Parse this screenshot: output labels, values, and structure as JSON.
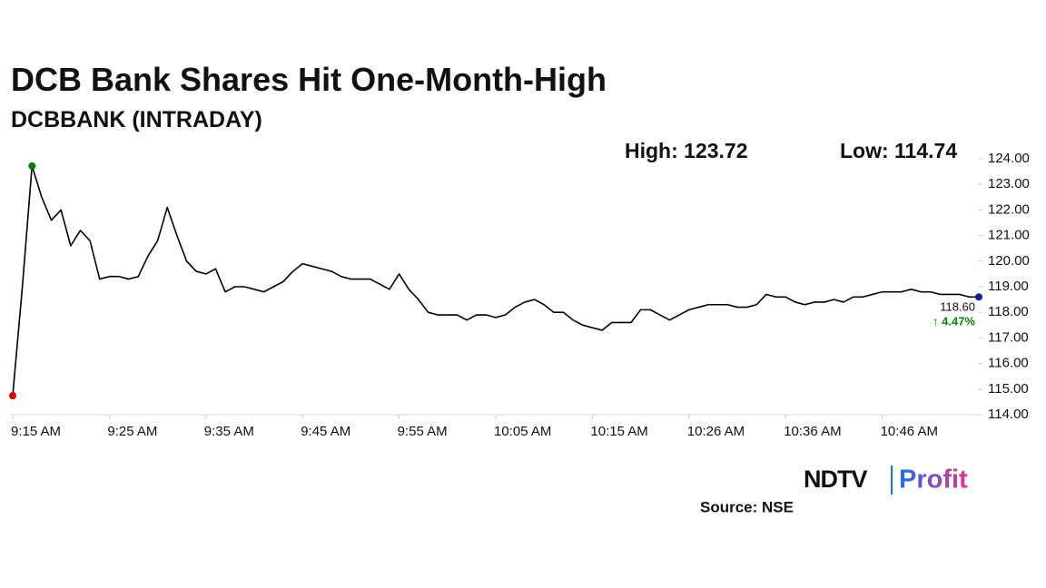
{
  "chart_data": {
    "type": "line",
    "title": "DCB Bank Shares Hit One-Month-High",
    "subtitle": "DCBBANK (INTRADAY)",
    "annotations": {
      "high": "High: 123.72",
      "low": "Low: 114.74",
      "last": "118.60",
      "change": "↑ 4.47%"
    },
    "source": "Source: NSE",
    "logo": {
      "left": "NDTV",
      "right": "Profit"
    },
    "color": "#000000",
    "marker_colors": {
      "low": "#e00000",
      "high": "#0a7a0a",
      "last": "#1a1aa0"
    },
    "change_color": "#0a8a0a",
    "categories": [
      "9:15 AM",
      null,
      null,
      null,
      null,
      null,
      null,
      null,
      null,
      null,
      "9:25 AM",
      null,
      null,
      null,
      null,
      null,
      null,
      null,
      null,
      null,
      "9:35 AM",
      null,
      null,
      null,
      null,
      null,
      null,
      null,
      null,
      null,
      "9:45 AM",
      null,
      null,
      null,
      null,
      null,
      null,
      null,
      null,
      null,
      "9:55 AM",
      null,
      null,
      null,
      null,
      null,
      null,
      null,
      null,
      null,
      "10:05 AM",
      null,
      null,
      null,
      null,
      null,
      null,
      null,
      null,
      null,
      "10:15 AM",
      null,
      null,
      null,
      null,
      null,
      null,
      null,
      null,
      null,
      "10:26 AM",
      null,
      null,
      null,
      null,
      null,
      null,
      null,
      null,
      null,
      "10:36 AM",
      null,
      null,
      null,
      null,
      null,
      null,
      null,
      null,
      null,
      "10:46 AM",
      null,
      null,
      null,
      null,
      null,
      null,
      null,
      null,
      null,
      null
    ],
    "values": [
      114.74,
      119.0,
      123.72,
      122.5,
      121.6,
      122.0,
      120.6,
      121.2,
      120.8,
      119.3,
      119.4,
      119.4,
      119.3,
      119.4,
      120.2,
      120.8,
      122.1,
      121.0,
      120.0,
      119.6,
      119.5,
      119.7,
      118.8,
      119.0,
      119.0,
      118.9,
      118.8,
      119.0,
      119.2,
      119.6,
      119.9,
      119.8,
      119.7,
      119.6,
      119.4,
      119.3,
      119.3,
      119.3,
      119.1,
      118.9,
      119.5,
      118.9,
      118.5,
      118.0,
      117.9,
      117.9,
      117.9,
      117.7,
      117.9,
      117.9,
      117.8,
      117.9,
      118.2,
      118.4,
      118.5,
      118.3,
      118.0,
      118.0,
      117.7,
      117.5,
      117.4,
      117.3,
      117.6,
      117.6,
      117.6,
      118.1,
      118.1,
      117.9,
      117.7,
      117.9,
      118.1,
      118.2,
      118.3,
      118.3,
      118.3,
      118.2,
      118.2,
      118.3,
      118.7,
      118.6,
      118.6,
      118.4,
      118.3,
      118.4,
      118.4,
      118.5,
      118.4,
      118.6,
      118.6,
      118.7,
      118.8,
      118.8,
      118.8,
      118.9,
      118.8,
      118.8,
      118.7,
      118.7,
      118.7,
      118.6,
      118.6
    ],
    "ylim": [
      114,
      124
    ],
    "yticks": [
      {
        "value": 114,
        "label": "114.00"
      },
      {
        "value": 115,
        "label": "115.00"
      },
      {
        "value": 116,
        "label": "116.00"
      },
      {
        "value": 117,
        "label": "117.00"
      },
      {
        "value": 118,
        "label": "118.00"
      },
      {
        "value": 119,
        "label": "119.00"
      },
      {
        "value": 120,
        "label": "120.00"
      },
      {
        "value": 121,
        "label": "121.00"
      },
      {
        "value": 122,
        "label": "122.00"
      },
      {
        "value": 123,
        "label": "123.00"
      },
      {
        "value": 124,
        "label": "124.00"
      }
    ],
    "grid": false
  }
}
